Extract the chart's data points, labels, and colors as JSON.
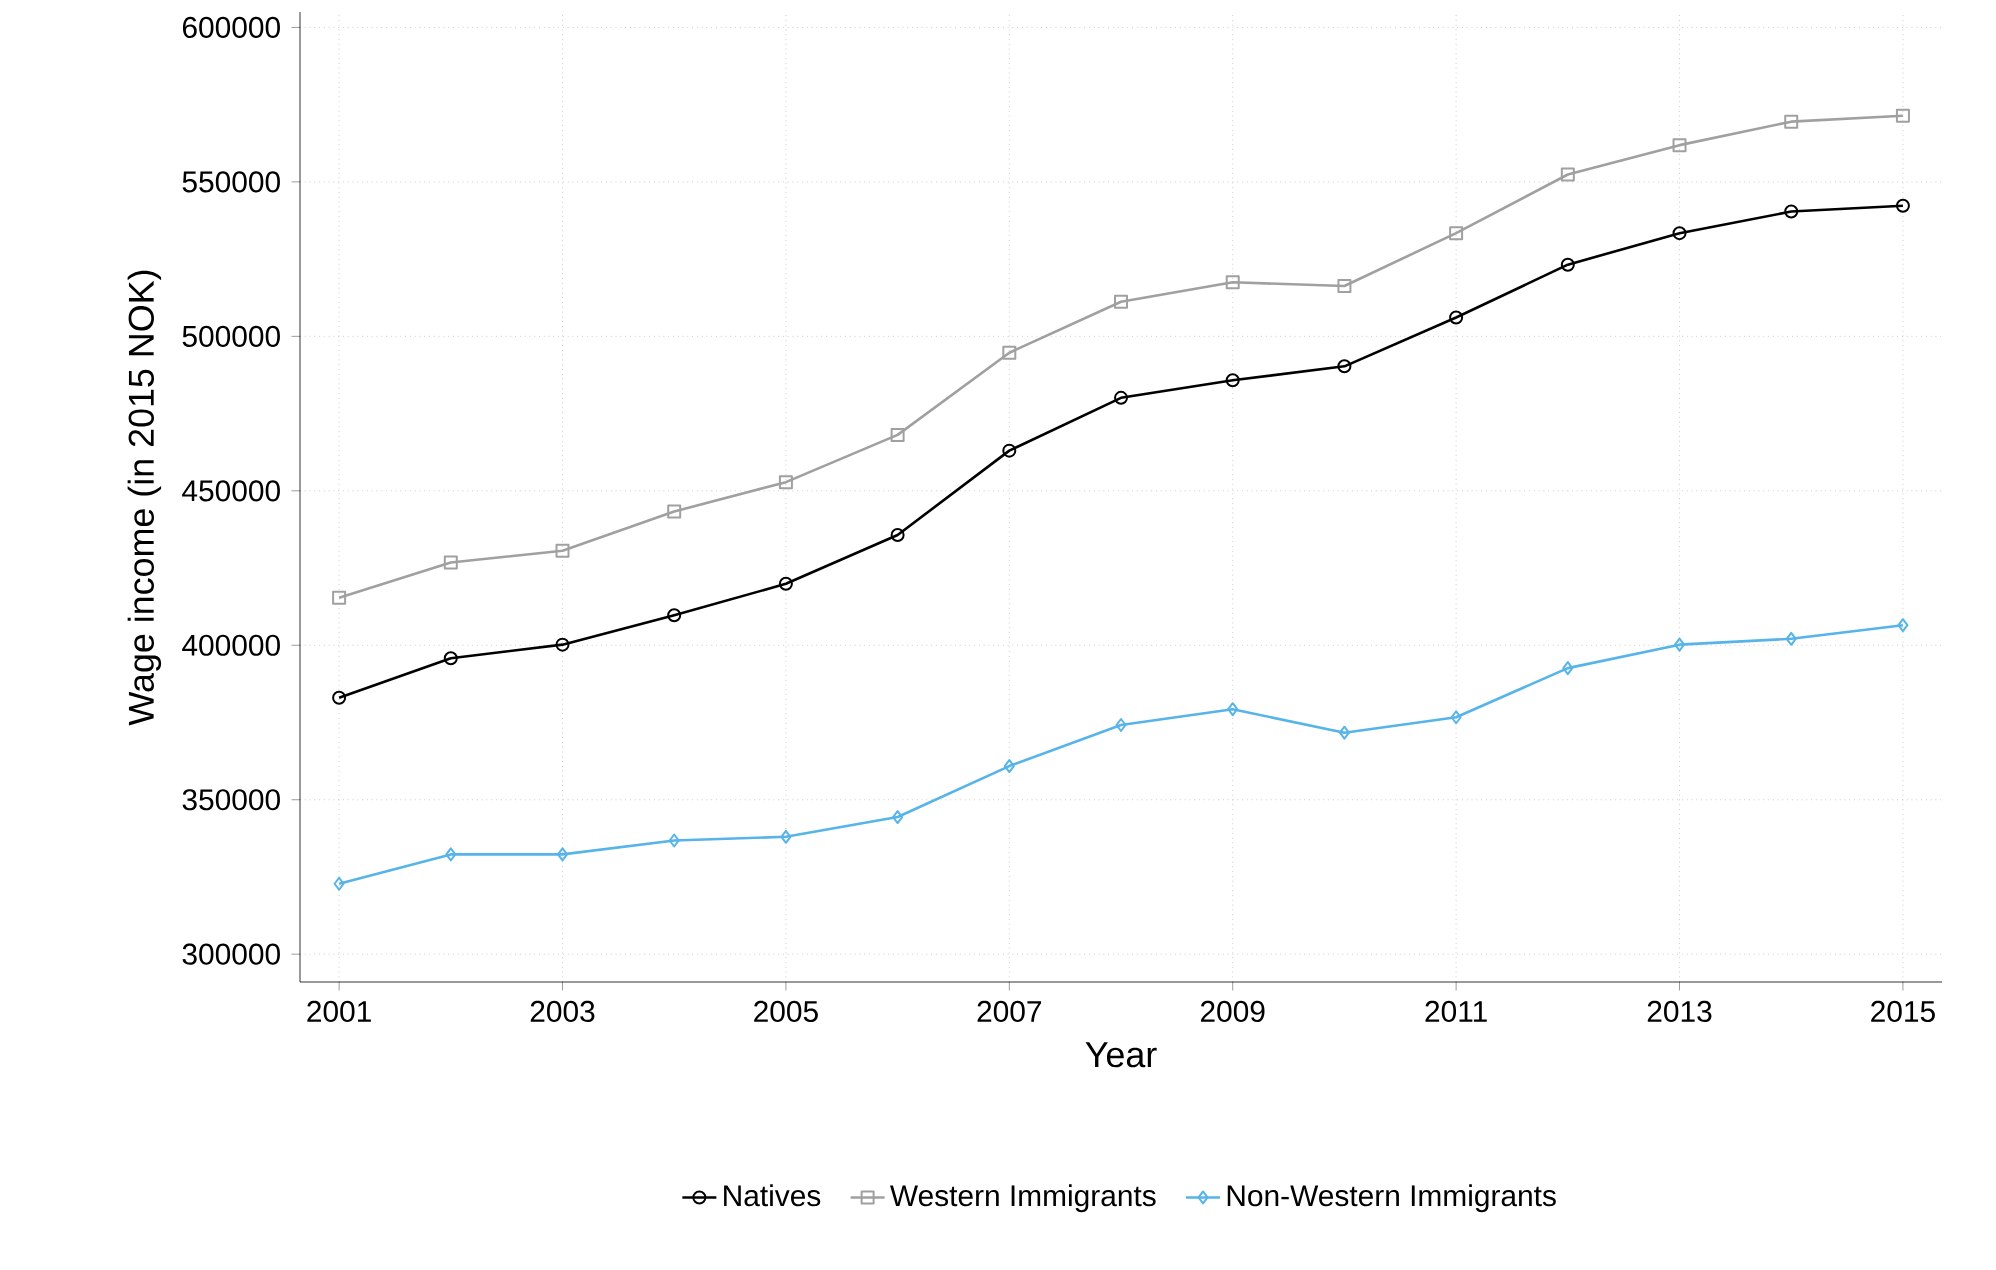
{
  "chart_data": {
    "type": "line",
    "xlabel": "Year",
    "ylabel": "Wage income (in 2015 NOK)",
    "x": [
      2001,
      2002,
      2003,
      2004,
      2005,
      2006,
      2007,
      2008,
      2009,
      2010,
      2011,
      2012,
      2013,
      2014,
      2015
    ],
    "series": [
      {
        "name": "Natives",
        "color": "#000000",
        "marker": "circle",
        "values": [
          383000,
          395800,
          400200,
          409700,
          419900,
          435700,
          463000,
          480100,
          485800,
          490300,
          506100,
          523200,
          533400,
          540400,
          542300
        ]
      },
      {
        "name": "Western Immigrants",
        "color": "#a0a0a0",
        "marker": "square",
        "values": [
          415400,
          426800,
          430600,
          443300,
          452800,
          468100,
          494700,
          511200,
          517500,
          516300,
          533400,
          552400,
          561900,
          569500,
          571400
        ]
      },
      {
        "name": "Non-Western Immigrants",
        "color": "#56b4e9",
        "marker": "diamond",
        "values": [
          322800,
          332300,
          332300,
          336800,
          338000,
          344400,
          360900,
          374200,
          379300,
          371700,
          376700,
          392600,
          400200,
          402100,
          406500
        ]
      }
    ],
    "xlim": [
      2000.65,
      2015.35
    ],
    "ylim": [
      291000,
      605000
    ],
    "xticks": [
      2001,
      2003,
      2005,
      2007,
      2009,
      2011,
      2013,
      2015
    ],
    "yticks": [
      300000,
      350000,
      400000,
      450000,
      500000,
      550000,
      600000
    ],
    "grid": true,
    "legend": "bottom",
    "line_style": "solid"
  }
}
